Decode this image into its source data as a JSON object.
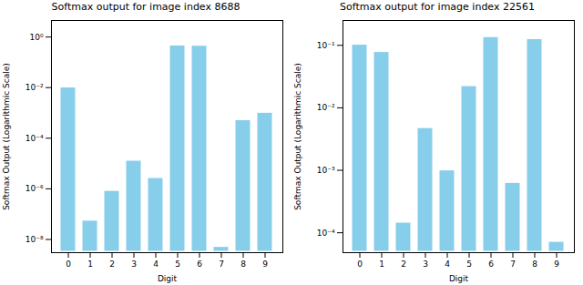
{
  "chart_data": [
    {
      "type": "bar",
      "title": "Softmax output for image index 8688",
      "x_label": "Digit",
      "y_label": "Softmax Output (Logarithmic Scale)",
      "categories": [
        "0",
        "1",
        "2",
        "3",
        "4",
        "5",
        "6",
        "7",
        "8",
        "9"
      ],
      "values": [
        0.011,
        6e-08,
        9e-07,
        1.4e-05,
        2.9e-06,
        0.5,
        0.49,
        5.5e-09,
        0.00056,
        0.0011
      ],
      "color": "#87ceeb",
      "log": "y",
      "grid": false,
      "ylim": [
        3e-09,
        4.5
      ],
      "yticks": [
        {
          "value": 1,
          "label": "10⁰"
        },
        {
          "value": 0.01,
          "label": "10⁻²"
        },
        {
          "value": 0.0001,
          "label": "10⁻⁴"
        },
        {
          "value": 1e-06,
          "label": "10⁻⁶"
        },
        {
          "value": 1e-08,
          "label": "10⁻⁸"
        }
      ]
    },
    {
      "type": "bar",
      "title": "Softmax output for image index 22561",
      "x_label": "Digit",
      "y_label": "Softmax Output (Logarithmic Scale)",
      "categories": [
        "0",
        "1",
        "2",
        "3",
        "4",
        "5",
        "6",
        "7",
        "8",
        "9"
      ],
      "values": [
        0.106,
        0.081,
        0.00015,
        0.0049,
        0.00103,
        0.023,
        0.14,
        0.00065,
        0.13,
        7.4e-05
      ],
      "color": "#87ceeb",
      "log": "y",
      "grid": false,
      "ylim": [
        4.8e-05,
        0.25
      ],
      "yticks": [
        {
          "value": 0.1,
          "label": "10⁻¹"
        },
        {
          "value": 0.01,
          "label": "10⁻²"
        },
        {
          "value": 0.001,
          "label": "10⁻³"
        },
        {
          "value": 0.0001,
          "label": "10⁻⁴"
        }
      ]
    }
  ]
}
